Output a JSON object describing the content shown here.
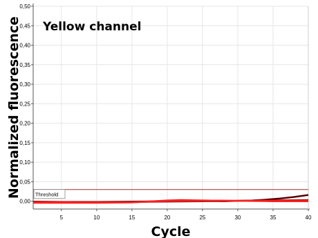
{
  "chart_data": {
    "type": "line",
    "title": "Yellow channel",
    "xlabel": "Cycle",
    "ylabel": "Normalized fluorescence",
    "xlim": [
      1,
      40
    ],
    "ylim": [
      -0.02,
      0.5
    ],
    "x_ticks": [
      5,
      10,
      15,
      20,
      25,
      30,
      35,
      40
    ],
    "x_tick_labels": [
      "5",
      "10",
      "15",
      "20",
      "25",
      "30",
      "35",
      "40"
    ],
    "y_ticks": [
      0,
      0.05,
      0.1,
      0.15,
      0.2,
      0.25,
      0.3,
      0.35,
      0.4,
      0.45,
      0.5
    ],
    "y_tick_labels": [
      "0,00",
      "0,05",
      "0,10",
      "0,15",
      "0,20",
      "0,25",
      "0,30",
      "0,35",
      "0,40",
      "0,45",
      "0,50"
    ],
    "grid": true,
    "threshold": {
      "label": "Threshold",
      "value": 0.03
    },
    "colors": {
      "threshold": "#a03030",
      "grid": "#e6e6e6"
    },
    "series": [
      {
        "color": "#5a0000",
        "x": [
          1,
          5,
          10,
          15,
          20,
          25,
          28,
          30,
          32,
          34,
          36,
          38,
          40
        ],
        "y": [
          -0.001,
          -0.002,
          -0.002,
          -0.001,
          0.0,
          0.001,
          0.0,
          0.001,
          0.002,
          0.004,
          0.007,
          0.011,
          0.016
        ]
      },
      {
        "color": "#8b1a1a",
        "x": [
          1,
          5,
          10,
          15,
          20,
          25,
          30,
          35,
          40
        ],
        "y": [
          -0.003,
          -0.003,
          -0.002,
          -0.002,
          -0.001,
          0.0,
          0.001,
          0.002,
          0.003
        ]
      },
      {
        "color": "#e81010",
        "x": [
          1,
          5,
          10,
          15,
          20,
          22,
          25,
          30,
          35,
          40
        ],
        "y": [
          -0.002,
          -0.002,
          -0.003,
          -0.003,
          0.002,
          0.003,
          0.002,
          0.001,
          0.001,
          0.001
        ]
      },
      {
        "color": "#ff2020",
        "x": [
          1,
          5,
          10,
          15,
          20,
          25,
          30,
          35,
          40
        ],
        "y": [
          -0.004,
          -0.004,
          -0.004,
          -0.003,
          0.001,
          0.002,
          0.001,
          0.0,
          0.0
        ]
      }
    ]
  }
}
